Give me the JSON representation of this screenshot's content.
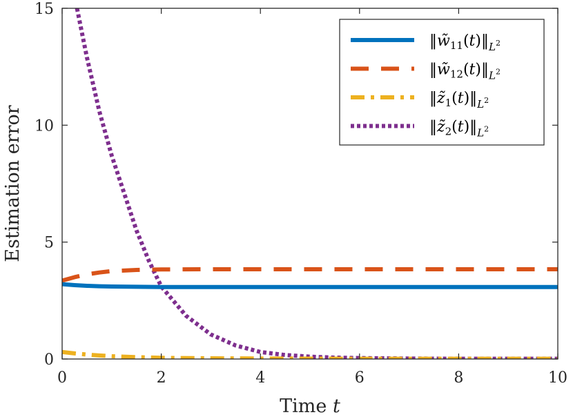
{
  "chart_data": {
    "type": "line",
    "xlabel": "Time t",
    "xlabel_parts": {
      "text": "Time",
      "var": "t"
    },
    "ylabel": "Estimation error",
    "xlim": [
      0,
      10
    ],
    "ylim": [
      0,
      15
    ],
    "xticks": [
      0,
      2,
      4,
      6,
      8,
      10
    ],
    "yticks": [
      0,
      5,
      10,
      15
    ],
    "xtick_labels": [
      "0",
      "2",
      "4",
      "6",
      "8",
      "10"
    ],
    "ytick_labels": [
      "0",
      "5",
      "10",
      "15"
    ],
    "grid": false,
    "legend_position": "top-right",
    "series": [
      {
        "name": "‖w̃11(t)‖L2",
        "legend": {
          "base": "w̃",
          "sub": "11",
          "norm_sub": "L",
          "norm_sup": "2"
        },
        "color": "#0072BD",
        "style": "solid",
        "x": [
          0,
          0.25,
          0.5,
          0.75,
          1,
          1.5,
          2,
          3,
          4,
          6,
          8,
          10
        ],
        "y": [
          3.2,
          3.16,
          3.13,
          3.11,
          3.1,
          3.09,
          3.08,
          3.08,
          3.08,
          3.08,
          3.08,
          3.08
        ]
      },
      {
        "name": "‖w̃12(t)‖L2",
        "legend": {
          "base": "w̃",
          "sub": "12",
          "norm_sub": "L",
          "norm_sup": "2"
        },
        "color": "#D95319",
        "style": "dashed",
        "x": [
          0,
          0.25,
          0.5,
          0.75,
          1,
          1.5,
          2,
          3,
          4,
          6,
          8,
          10
        ],
        "y": [
          3.35,
          3.5,
          3.62,
          3.7,
          3.76,
          3.81,
          3.83,
          3.84,
          3.84,
          3.84,
          3.84,
          3.84
        ]
      },
      {
        "name": "‖z̃1(t)‖L2",
        "legend": {
          "base": "z̃",
          "sub": "1",
          "norm_sub": "L",
          "norm_sup": "2"
        },
        "color": "#EDB120",
        "style": "dashdot",
        "x": [
          0,
          0.25,
          0.5,
          0.75,
          1,
          1.5,
          2,
          3,
          4,
          6,
          8,
          10
        ],
        "y": [
          0.3,
          0.24,
          0.19,
          0.15,
          0.12,
          0.08,
          0.05,
          0.03,
          0.02,
          0.01,
          0.01,
          0.01
        ]
      },
      {
        "name": "‖z̃2(t)‖L2",
        "legend": {
          "base": "z̃",
          "sub": "2",
          "norm_sub": "L",
          "norm_sup": "2"
        },
        "color": "#7E2F8E",
        "style": "dotted",
        "x": [
          0.3,
          0.5,
          0.75,
          1,
          1.25,
          1.5,
          1.75,
          2,
          2.5,
          3,
          3.5,
          4,
          4.5,
          5,
          5.5,
          6,
          7,
          8,
          10
        ],
        "y": [
          15,
          12.9,
          10.6,
          8.7,
          7.1,
          5.5,
          4.2,
          3.1,
          1.85,
          1.05,
          0.58,
          0.3,
          0.17,
          0.1,
          0.06,
          0.04,
          0.02,
          0.01,
          0.01
        ]
      }
    ]
  }
}
